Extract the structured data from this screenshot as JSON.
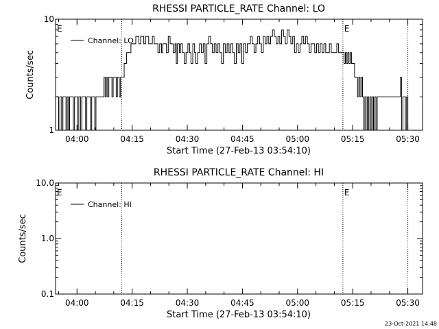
{
  "footer": {
    "timestamp": "23-Oct-2021 14:48"
  },
  "chart_data": [
    {
      "type": "line",
      "title": "RHESSI PARTICLE_RATE Channel: LO",
      "xlabel": "Start Time (27-Feb-13 03:54:10)",
      "ylabel": "Counts/sec",
      "yscale": "log",
      "ylim": [
        1,
        10
      ],
      "xlim": [
        "03:54:10",
        "05:34:00"
      ],
      "x_ticks": [
        "04:00",
        "04:15",
        "04:30",
        "04:45",
        "05:00",
        "05:15",
        "05:30"
      ],
      "y_ticks": [
        "1",
        "10"
      ],
      "legend": {
        "entries": [
          "Channel: LO"
        ],
        "placement": "top-left"
      },
      "markers": [
        {
          "label": "E",
          "time": "03:54:10"
        },
        {
          "label": "E",
          "time": "05:12:20"
        }
      ],
      "vlines": [
        "04:12:10",
        "05:12:20",
        "05:30:00"
      ],
      "series": [
        {
          "name": "Channel: LO",
          "points": [
            [
              "03:54:10",
              2
            ],
            [
              "03:54:40",
              2
            ],
            [
              "03:55:00",
              1
            ],
            [
              "03:55:20",
              2
            ],
            [
              "03:55:50",
              1
            ],
            [
              "03:56:10",
              2
            ],
            [
              "03:56:40",
              2
            ],
            [
              "03:57:00",
              1
            ],
            [
              "03:57:20",
              2
            ],
            [
              "03:57:40",
              1
            ],
            [
              "03:58:00",
              2
            ],
            [
              "03:58:40",
              2
            ],
            [
              "03:59:00",
              1
            ],
            [
              "03:59:20",
              2
            ],
            [
              "03:59:50",
              2
            ],
            [
              "04:00:10",
              1
            ],
            [
              "04:00:30",
              2
            ],
            [
              "04:01:00",
              1
            ],
            [
              "04:01:20",
              2
            ],
            [
              "04:02:00",
              2
            ],
            [
              "04:02:20",
              1
            ],
            [
              "04:02:40",
              2
            ],
            [
              "04:03:20",
              2
            ],
            [
              "04:03:40",
              1
            ],
            [
              "04:04:00",
              2
            ],
            [
              "04:04:30",
              2
            ],
            [
              "04:04:50",
              1
            ],
            [
              "04:05:10",
              2
            ],
            [
              "04:07:00",
              2
            ],
            [
              "04:07:20",
              3
            ],
            [
              "04:07:40",
              2
            ],
            [
              "04:08:00",
              3
            ],
            [
              "04:08:20",
              2
            ],
            [
              "04:08:40",
              3
            ],
            [
              "04:09:10",
              3
            ],
            [
              "04:09:30",
              2
            ],
            [
              "04:09:50",
              3
            ],
            [
              "04:10:20",
              3
            ],
            [
              "04:10:40",
              2
            ],
            [
              "04:11:00",
              3
            ],
            [
              "04:11:30",
              2
            ],
            [
              "04:11:50",
              3
            ],
            [
              "04:12:20",
              3
            ],
            [
              "04:12:50",
              4
            ],
            [
              "04:13:30",
              5
            ],
            [
              "04:14:10",
              5
            ],
            [
              "04:14:40",
              6
            ],
            [
              "04:15:30",
              6
            ],
            [
              "04:16:00",
              7
            ],
            [
              "04:16:30",
              7
            ],
            [
              "04:16:50",
              6
            ],
            [
              "04:17:20",
              7
            ],
            [
              "04:17:50",
              7
            ],
            [
              "04:18:10",
              6
            ],
            [
              "04:18:40",
              7
            ],
            [
              "04:19:10",
              7
            ],
            [
              "04:19:30",
              6
            ],
            [
              "04:20:00",
              6
            ],
            [
              "04:20:30",
              7
            ],
            [
              "04:21:00",
              6
            ],
            [
              "04:21:30",
              6
            ],
            [
              "04:22:00",
              5
            ],
            [
              "04:22:30",
              6
            ],
            [
              "04:23:00",
              5
            ],
            [
              "04:23:20",
              6
            ],
            [
              "04:23:50",
              6
            ],
            [
              "04:24:20",
              5
            ],
            [
              "04:24:50",
              7
            ],
            [
              "04:25:20",
              6
            ],
            [
              "04:25:50",
              6
            ],
            [
              "04:26:10",
              5
            ],
            [
              "04:26:40",
              6
            ],
            [
              "04:27:00",
              4
            ],
            [
              "04:27:20",
              6
            ],
            [
              "04:27:50",
              5
            ],
            [
              "04:28:10",
              6
            ],
            [
              "04:28:40",
              5
            ],
            [
              "04:29:10",
              4
            ],
            [
              "04:29:40",
              5
            ],
            [
              "04:30:10",
              6
            ],
            [
              "04:30:40",
              5
            ],
            [
              "04:31:00",
              4
            ],
            [
              "04:31:30",
              6
            ],
            [
              "04:32:00",
              5
            ],
            [
              "04:32:20",
              4
            ],
            [
              "04:32:50",
              5
            ],
            [
              "04:33:20",
              6
            ],
            [
              "04:33:50",
              5
            ],
            [
              "04:34:20",
              6
            ],
            [
              "04:34:50",
              4
            ],
            [
              "04:35:20",
              6
            ],
            [
              "04:35:50",
              7
            ],
            [
              "04:36:20",
              6
            ],
            [
              "04:36:50",
              5
            ],
            [
              "04:37:20",
              6
            ],
            [
              "04:37:50",
              5
            ],
            [
              "04:38:20",
              6
            ],
            [
              "04:38:50",
              5
            ],
            [
              "04:39:20",
              4
            ],
            [
              "04:39:50",
              6
            ],
            [
              "04:40:20",
              5
            ],
            [
              "04:40:50",
              6
            ],
            [
              "04:41:20",
              5
            ],
            [
              "04:41:50",
              6
            ],
            [
              "04:42:20",
              5
            ],
            [
              "04:42:50",
              4
            ],
            [
              "04:43:20",
              6
            ],
            [
              "04:43:50",
              5
            ],
            [
              "04:44:20",
              6
            ],
            [
              "04:44:50",
              4
            ],
            [
              "04:45:20",
              6
            ],
            [
              "04:45:50",
              5
            ],
            [
              "04:46:20",
              6
            ],
            [
              "04:46:50",
              6
            ],
            [
              "04:47:10",
              7
            ],
            [
              "04:47:40",
              6
            ],
            [
              "04:48:10",
              5
            ],
            [
              "04:48:40",
              6
            ],
            [
              "04:49:10",
              7
            ],
            [
              "04:49:40",
              6
            ],
            [
              "04:50:10",
              5
            ],
            [
              "04:50:40",
              7
            ],
            [
              "04:51:10",
              6
            ],
            [
              "04:51:40",
              7
            ],
            [
              "04:52:10",
              6
            ],
            [
              "04:52:40",
              7
            ],
            [
              "04:53:10",
              8
            ],
            [
              "04:53:40",
              7
            ],
            [
              "04:54:10",
              6
            ],
            [
              "04:54:40",
              7
            ],
            [
              "04:55:10",
              6
            ],
            [
              "04:55:40",
              8
            ],
            [
              "04:56:10",
              7
            ],
            [
              "04:56:40",
              6
            ],
            [
              "04:57:10",
              8
            ],
            [
              "04:57:40",
              7
            ],
            [
              "04:58:10",
              6
            ],
            [
              "04:58:40",
              7
            ],
            [
              "04:59:10",
              5
            ],
            [
              "04:59:40",
              6
            ],
            [
              "05:00:10",
              5
            ],
            [
              "05:00:40",
              6
            ],
            [
              "05:01:10",
              7
            ],
            [
              "05:01:40",
              6
            ],
            [
              "05:02:10",
              7
            ],
            [
              "05:02:40",
              6
            ],
            [
              "05:03:10",
              5
            ],
            [
              "05:03:40",
              6
            ],
            [
              "05:04:10",
              6
            ],
            [
              "05:04:40",
              5
            ],
            [
              "05:05:10",
              6
            ],
            [
              "05:05:40",
              5
            ],
            [
              "05:06:10",
              6
            ],
            [
              "05:06:40",
              5
            ],
            [
              "05:07:10",
              6
            ],
            [
              "05:07:40",
              5
            ],
            [
              "05:08:10",
              5
            ],
            [
              "05:08:40",
              6
            ],
            [
              "05:09:10",
              5
            ],
            [
              "05:09:40",
              5
            ],
            [
              "05:10:10",
              5
            ],
            [
              "05:10:40",
              6
            ],
            [
              "05:11:10",
              5
            ],
            [
              "05:11:40",
              5
            ],
            [
              "05:12:10",
              5
            ],
            [
              "05:12:40",
              4
            ],
            [
              "05:13:00",
              5
            ],
            [
              "05:13:20",
              4
            ],
            [
              "05:13:40",
              5
            ],
            [
              "05:14:00",
              4
            ],
            [
              "05:14:20",
              5
            ],
            [
              "05:14:40",
              4
            ],
            [
              "05:15:00",
              4
            ],
            [
              "05:15:30",
              3
            ],
            [
              "05:16:00",
              3
            ],
            [
              "05:16:20",
              2
            ],
            [
              "05:16:40",
              3
            ],
            [
              "05:17:00",
              2
            ],
            [
              "05:17:20",
              3
            ],
            [
              "05:17:40",
              2
            ],
            [
              "05:18:00",
              1
            ],
            [
              "05:18:20",
              2
            ],
            [
              "05:18:40",
              1
            ],
            [
              "05:19:00",
              2
            ],
            [
              "05:19:20",
              1
            ],
            [
              "05:19:40",
              2
            ],
            [
              "05:20:00",
              1
            ],
            [
              "05:20:20",
              2
            ],
            [
              "05:20:40",
              1
            ],
            [
              "05:21:00",
              2
            ],
            [
              "05:21:20",
              1
            ],
            [
              "05:21:40",
              2
            ],
            [
              "05:22:00",
              2
            ],
            [
              "05:27:40",
              2
            ],
            [
              "05:28:00",
              3
            ],
            [
              "05:28:20",
              1
            ],
            [
              "05:28:40",
              2
            ],
            [
              "05:29:00",
              2
            ],
            [
              "05:29:20",
              1
            ],
            [
              "05:29:40",
              2
            ],
            [
              "05:30:00",
              1
            ]
          ]
        }
      ]
    },
    {
      "type": "line",
      "title": "RHESSI PARTICLE_RATE Channel: HI",
      "xlabel": "Start Time (27-Feb-13 03:54:10)",
      "ylabel": "Counts/sec",
      "yscale": "log",
      "ylim": [
        0.1,
        10
      ],
      "xlim": [
        "03:54:10",
        "05:34:00"
      ],
      "x_ticks": [
        "04:00",
        "04:15",
        "04:30",
        "04:45",
        "05:00",
        "05:15",
        "05:30"
      ],
      "y_ticks": [
        "0.1",
        "1.0",
        "10.0"
      ],
      "legend": {
        "entries": [
          "Channel: HI"
        ],
        "placement": "top-left"
      },
      "markers": [
        {
          "label": "E",
          "time": "03:54:10"
        },
        {
          "label": "E",
          "time": "05:12:20"
        }
      ],
      "vlines": [
        "04:12:10",
        "05:12:20",
        "05:30:00"
      ],
      "series": [
        {
          "name": "Channel: HI",
          "points": []
        }
      ]
    }
  ]
}
